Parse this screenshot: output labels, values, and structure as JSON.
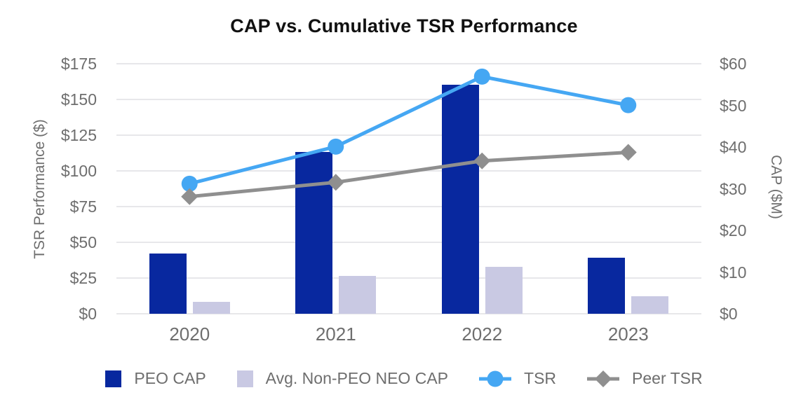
{
  "chart_data": {
    "type": "combo",
    "title": "CAP vs. Cumulative TSR Performance",
    "categories": [
      "2020",
      "2021",
      "2022",
      "2023"
    ],
    "series": [
      {
        "name": "PEO CAP",
        "type": "bar",
        "axis": "right",
        "color": "#08289f",
        "values": [
          14.5,
          38.9,
          54.9,
          13.5
        ]
      },
      {
        "name": "Avg. Non-PEO NEO CAP",
        "type": "bar",
        "axis": "right",
        "color": "#c9c9e3",
        "values": [
          2.9,
          9.1,
          11.2,
          4.2
        ]
      },
      {
        "name": "TSR",
        "type": "line",
        "axis": "left",
        "marker": "circle",
        "color": "#45a7f3",
        "values": [
          91,
          117,
          166,
          146
        ]
      },
      {
        "name": "Peer TSR",
        "type": "line",
        "axis": "left",
        "marker": "diamond",
        "color": "#8f8f8f",
        "values": [
          82,
          92,
          107,
          113
        ]
      }
    ],
    "left_axis": {
      "title": "TSR Performance ($)",
      "min": 0,
      "max": 175,
      "step": 25,
      "tick_labels": [
        "$0",
        "$25",
        "$50",
        "$75",
        "$100",
        "$125",
        "$150",
        "$175"
      ]
    },
    "right_axis": {
      "title": "CAP ($M)",
      "min": 0,
      "max": 60,
      "step": 10,
      "tick_labels": [
        "$0",
        "$10",
        "$20",
        "$30",
        "$40",
        "$50",
        "$60"
      ]
    },
    "grid": true,
    "legend_position": "bottom",
    "colors": {
      "title_text": "#111111",
      "axis_text": "#6e6e6e",
      "gridline": "#e7e7ea",
      "background": "#ffffff"
    }
  }
}
